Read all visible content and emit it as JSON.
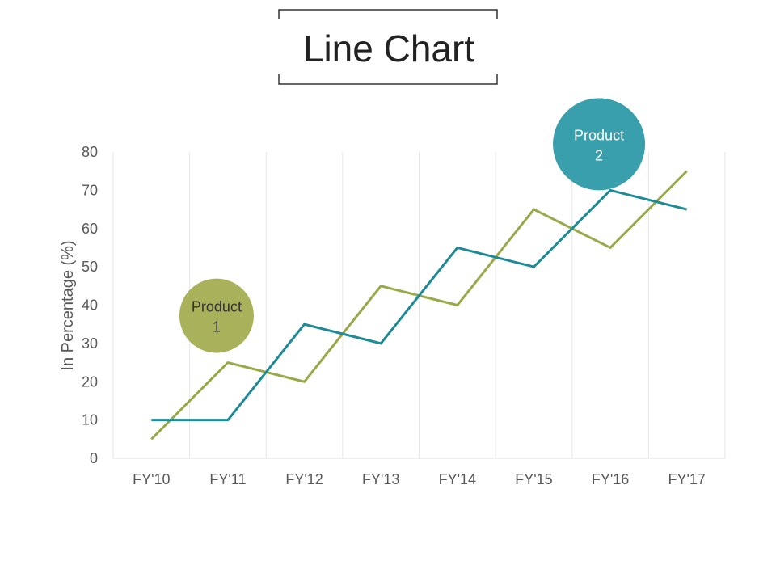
{
  "title": "Line Chart",
  "chart_data": {
    "type": "line",
    "title": "Line Chart",
    "xlabel": "",
    "ylabel": "In Percentage (%)",
    "categories": [
      "FY'10",
      "FY'11",
      "FY'12",
      "FY'13",
      "FY'14",
      "FY'15",
      "FY'16",
      "FY'17"
    ],
    "ylim": [
      0,
      80
    ],
    "yticks": [
      "0",
      "10",
      "20",
      "30",
      "40",
      "50",
      "60",
      "70",
      "80"
    ],
    "grid": true,
    "series": [
      {
        "name": "Product 1",
        "label_line1": "Product",
        "label_line2": "1",
        "color": "#9aa84a",
        "bubble_color": "#a9b25a",
        "text_color": "#333333",
        "values": [
          5,
          25,
          20,
          45,
          40,
          65,
          55,
          75
        ]
      },
      {
        "name": "Product 2",
        "label_line1": "Product",
        "label_line2": "2",
        "color": "#1e8a96",
        "bubble_color": "#3a9fac",
        "text_color": "#ffffff",
        "values": [
          10,
          10,
          35,
          30,
          55,
          50,
          70,
          65
        ]
      }
    ]
  }
}
